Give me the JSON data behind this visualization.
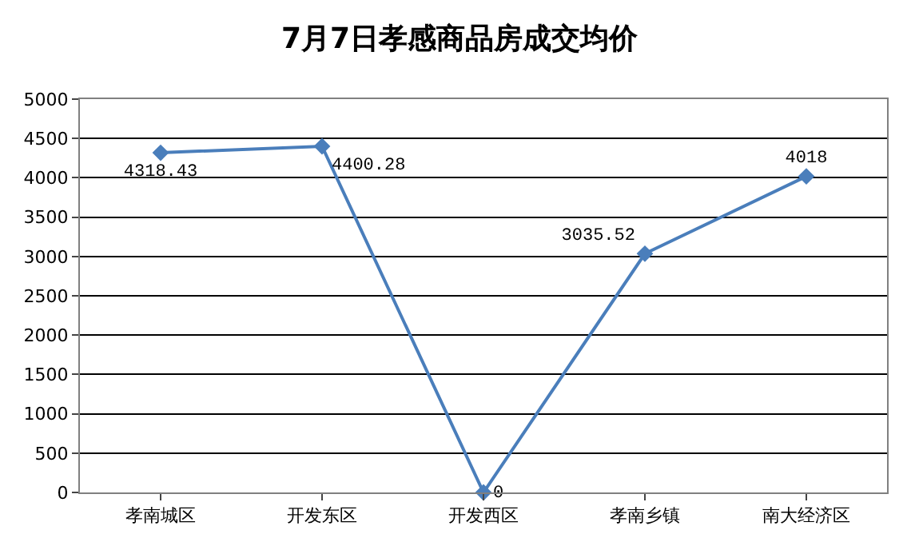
{
  "chart_data": {
    "type": "line",
    "title": "7月7日孝感商品房成交均价",
    "categories": [
      "孝南城区",
      "开发东区",
      "开发西区",
      "孝南乡镇",
      "南大经济区"
    ],
    "series": [
      {
        "color": "#4a7ebb",
        "values": [
          4318.43,
          4400.28,
          0,
          3035.52,
          4018
        ]
      }
    ],
    "ylim": [
      0,
      5000
    ],
    "yticks": [
      0,
      500,
      1000,
      1500,
      2000,
      2500,
      3000,
      3500,
      4000,
      4500,
      5000
    ],
    "grid": "y",
    "marker": "diamond",
    "line_style": "solid",
    "data_labels": true
  }
}
